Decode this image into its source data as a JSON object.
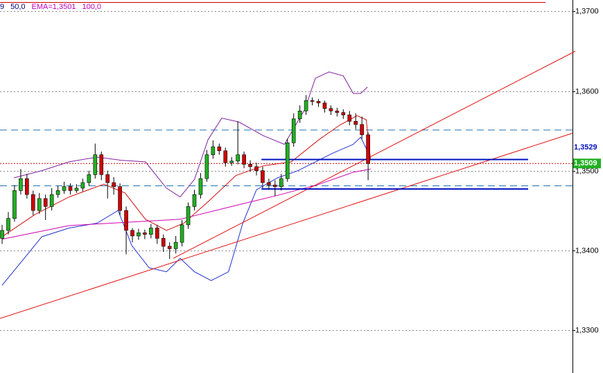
{
  "chart_data": {
    "type": "candlestick",
    "header": [
      {
        "text": "9",
        "color": "#000080"
      },
      {
        "text": "50,0",
        "color": "#000080"
      },
      {
        "text": "EMA=1,3501",
        "color": "#c000c0"
      },
      {
        "text": "100,0",
        "color": "#c000c0"
      }
    ],
    "up_color": "#22b022",
    "down_color": "#d00000",
    "open": [
      1.3415,
      1.3425,
      1.344,
      1.3475,
      1.349,
      1.347,
      1.345,
      1.3465,
      1.3455,
      1.347,
      1.3475,
      1.348,
      1.3475,
      1.3478,
      1.3485,
      1.3495,
      1.352,
      1.3495,
      1.3485,
      1.348,
      1.345,
      1.3425,
      1.3418,
      1.3422,
      1.342,
      1.3428,
      1.3415,
      1.3405,
      1.3402,
      1.341,
      1.3432,
      1.3455,
      1.347,
      1.349,
      1.352,
      1.353,
      1.3525,
      1.351,
      1.3512,
      1.352,
      1.3508,
      1.3505,
      1.35,
      1.3485,
      1.3482,
      1.348,
      1.349,
      1.3535,
      1.3565,
      1.3575,
      1.3588,
      1.3587,
      1.3585,
      1.3578,
      1.3575,
      1.3573,
      1.357,
      1.3562,
      1.3558,
      1.3545
    ],
    "high": [
      1.3432,
      1.3448,
      1.3482,
      1.3502,
      1.3496,
      1.3475,
      1.3472,
      1.347,
      1.3478,
      1.3481,
      1.3486,
      1.3484,
      1.3483,
      1.349,
      1.35,
      1.3534,
      1.3524,
      1.35,
      1.3492,
      1.3484,
      1.3455,
      1.3428,
      1.3427,
      1.3426,
      1.3433,
      1.3432,
      1.342,
      1.341,
      1.3418,
      1.3438,
      1.346,
      1.3476,
      1.3497,
      1.3526,
      1.3538,
      1.3534,
      1.3529,
      1.3517,
      1.3562,
      1.3524,
      1.3513,
      1.351,
      1.3505,
      1.349,
      1.3488,
      1.3496,
      1.354,
      1.3572,
      1.3582,
      1.3595,
      1.3592,
      1.359,
      1.3588,
      1.3582,
      1.3579,
      1.3577,
      1.3575,
      1.3572,
      1.3568,
      1.3548
    ],
    "low": [
      1.3408,
      1.342,
      1.3436,
      1.347,
      1.3465,
      1.3444,
      1.3446,
      1.3438,
      1.345,
      1.3466,
      1.3471,
      1.347,
      1.3472,
      1.3474,
      1.3481,
      1.349,
      1.3488,
      1.3465,
      1.347,
      1.3444,
      1.3395,
      1.341,
      1.3413,
      1.3414,
      1.3415,
      1.3408,
      1.3398,
      1.3389,
      1.3396,
      1.3405,
      1.3427,
      1.345,
      1.3465,
      1.3486,
      1.3515,
      1.352,
      1.3505,
      1.3506,
      1.3508,
      1.3503,
      1.3499,
      1.3494,
      1.3478,
      1.3476,
      1.3468,
      1.3475,
      1.3486,
      1.353,
      1.356,
      1.357,
      1.3582,
      1.358,
      1.3573,
      1.357,
      1.3568,
      1.3565,
      1.3557,
      1.3552,
      1.354,
      1.3488
    ],
    "close": [
      1.3425,
      1.344,
      1.3475,
      1.349,
      1.347,
      1.345,
      1.3465,
      1.3455,
      1.347,
      1.3475,
      1.348,
      1.3475,
      1.3478,
      1.3485,
      1.3495,
      1.352,
      1.3495,
      1.3485,
      1.348,
      1.345,
      1.3425,
      1.3418,
      1.3422,
      1.342,
      1.3428,
      1.3415,
      1.3405,
      1.3402,
      1.341,
      1.3432,
      1.3455,
      1.347,
      1.349,
      1.352,
      1.353,
      1.3525,
      1.351,
      1.3512,
      1.352,
      1.3508,
      1.3505,
      1.35,
      1.3485,
      1.3482,
      1.348,
      1.349,
      1.3535,
      1.3565,
      1.3575,
      1.3588,
      1.3587,
      1.3585,
      1.3578,
      1.3575,
      1.3573,
      1.357,
      1.3562,
      1.3558,
      1.3545,
      1.3509
    ],
    "overlays": [
      {
        "color": "#2030d0",
        "x": [
          0,
          4.1,
          6.4,
          10.8,
          15.3,
          18.7,
          20.9,
          23.7,
          26.5,
          28.7,
          31,
          33.7,
          36.5,
          38.8,
          41,
          44.4,
          47.7,
          53.3,
          56.6,
          57.8,
          58.7,
          59.2
        ],
        "values": [
          1.3356,
          1.3395,
          1.3417,
          1.3428,
          1.3434,
          1.345,
          1.3406,
          1.3378,
          1.3373,
          1.339,
          1.3373,
          1.3362,
          1.3373,
          1.3434,
          1.3476,
          1.3491,
          1.35,
          1.3522,
          1.3533,
          1.3542,
          1.3528,
          1.3511
        ]
      },
      {
        "color": "#8020a0",
        "x": [
          1.9,
          6.4,
          10.8,
          15.3,
          19.2,
          23.1,
          26.5,
          28.7,
          31,
          33.2,
          35.4,
          38.2,
          42.1,
          45.5,
          48.8,
          50.5,
          52.7,
          55,
          56.6,
          57.8,
          58.9
        ],
        "values": [
          1.3491,
          1.35,
          1.3511,
          1.3517,
          1.3513,
          1.3511,
          1.3478,
          1.3467,
          1.3489,
          1.3539,
          1.3566,
          1.3561,
          1.3544,
          1.3533,
          1.3577,
          1.3616,
          1.3624,
          1.3619,
          1.3597,
          1.3597,
          1.3605
        ]
      },
      {
        "color": "#d01010",
        "x": [
          0,
          5.3,
          10.8,
          16.4,
          19.8,
          23.1,
          26.5,
          29.3,
          33.2,
          37.7,
          42.1,
          46.6,
          51.1,
          54.4,
          57.2,
          58.7,
          59.4
        ],
        "values": [
          1.3417,
          1.3445,
          1.3467,
          1.3483,
          1.3472,
          1.3439,
          1.3425,
          1.3434,
          1.3461,
          1.3494,
          1.3506,
          1.3511,
          1.3539,
          1.3557,
          1.3569,
          1.3564,
          1.3513
        ]
      },
      {
        "color": "#d000b0",
        "x": [
          0,
          10.8,
          22,
          28.7,
          36.5,
          44.4,
          51.1,
          56.6,
          59.4
        ],
        "values": [
          1.3414,
          1.3431,
          1.3436,
          1.3439,
          1.3454,
          1.3469,
          1.3483,
          1.3498,
          1.3502
        ]
      },
      {
        "color": "#e01010",
        "x": [
          -0.34,
          91.95
        ],
        "values": [
          1.33144,
          1.3547
        ]
      },
      {
        "color": "#e01010",
        "x": [
          27.6,
          92.4
        ],
        "values": [
          1.339,
          1.365
        ]
      },
      {
        "color": "#d00000",
        "x": [
          -0.34,
          87.6
        ],
        "values": [
          1.37113,
          1.37113
        ]
      },
      {
        "color": "#0010c0",
        "x": [
          41.8,
          84.8
        ],
        "values": [
          1.3514,
          1.3514
        ],
        "width": 2
      },
      {
        "color": "#0010c0",
        "x": [
          41.8,
          84.8
        ],
        "values": [
          1.3477,
          1.3477
        ],
        "width": 2
      }
    ],
    "hlines": [
      {
        "value": 1.3551,
        "color": "#2070b0",
        "style": "dashed"
      },
      {
        "value": 1.3481,
        "color": "#2070b0",
        "style": "dashed"
      },
      {
        "value": 1.3509,
        "color": "#d00000",
        "style": "dotted"
      }
    ],
    "price_labels": [
      {
        "value": 1.3529,
        "label": "1,3529",
        "color": "#0010c0",
        "background": "none"
      },
      {
        "value": 1.3509,
        "label": "1,3509",
        "color": "#ffffff",
        "background": "#22b022"
      }
    ],
    "xlim": [
      -0.34,
      91.95
    ],
    "ylim": [
      1.32459,
      1.37143
    ],
    "yticks": [
      {
        "value": 1.33,
        "label": "1,3300"
      },
      {
        "value": 1.34,
        "label": "1,3400"
      },
      {
        "value": 1.35,
        "label": "1,3500"
      },
      {
        "value": 1.36,
        "label": "1,3600"
      },
      {
        "value": 1.37,
        "label": "1,3700"
      }
    ],
    "grid": true
  }
}
